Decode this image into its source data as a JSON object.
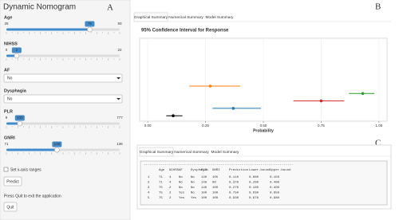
{
  "app": {
    "title": "Dynamic Nomogram",
    "panel_labels": [
      "A",
      "B",
      "C"
    ]
  },
  "inputs": [
    {
      "kind": "slider",
      "label": "Age",
      "min": 25,
      "max": 93,
      "value": 75
    },
    {
      "kind": "slider",
      "label": "NIHSS",
      "min": 0,
      "max": 22,
      "value": 2
    },
    {
      "kind": "select",
      "label": "AF",
      "value": "No"
    },
    {
      "kind": "select",
      "label": "Dysphagia",
      "value": "No"
    },
    {
      "kind": "slider",
      "label": "PLR",
      "min": 9,
      "max": 777,
      "value": 100
    },
    {
      "kind": "slider",
      "label": "GNRI",
      "min": 71,
      "max": 136,
      "value": 100
    }
  ],
  "checkbox": "Set x-axis ranges",
  "predict": "Predict",
  "quit_note": "Press Quit to exit the application",
  "quit": "Quit",
  "tabs": [
    "Graphical Summary",
    "Numerical Summary",
    "Model Summary"
  ],
  "chart_data": {
    "type": "errorbar",
    "title": "95% Confidence Interval for Response",
    "xlabel": "Probability",
    "xlim": [
      -0.035,
      1.035
    ],
    "xticks": [
      {
        "value": 0,
        "label": "0.00"
      },
      {
        "value": 0.25,
        "label": "0.25"
      },
      {
        "value": 0.5,
        "label": "0.50"
      },
      {
        "value": 0.75,
        "label": "0.75"
      },
      {
        "value": 1,
        "label": "1.00"
      }
    ],
    "grid": true,
    "points": [
      {
        "value": 0.27,
        "lower": 0.18,
        "upper": 0.4,
        "color": "#ff7f0e"
      },
      {
        "value": 0.93,
        "lower": 0.87,
        "upper": 0.98,
        "color": "#2ca02c"
      },
      {
        "value": 0.75,
        "lower": 0.63,
        "upper": 0.85,
        "color": "#d62728"
      },
      {
        "value": 0.37,
        "lower": 0.28,
        "upper": 0.49,
        "color": "#1f77b4"
      },
      {
        "value": 0.11,
        "lower": 0.08,
        "upper": 0.15,
        "color": "#000000"
      }
    ]
  },
  "table": {
    "columns": [
      "Age",
      "NIHSS",
      "AF",
      "Dysphagia",
      "PLR",
      "GNRI",
      "Prediction",
      "Lower.bound",
      "Upper.bound"
    ],
    "rows": [
      [
        "1",
        "71",
        "4",
        "No",
        "No",
        "140",
        "105",
        "0.110",
        "0.080",
        "0.150"
      ],
      [
        "2",
        "71",
        "4",
        "No",
        "No",
        "140",
        "90",
        "0.370",
        "0.280",
        "0.490"
      ],
      [
        "3",
        "75",
        "2",
        "No",
        "No",
        "140",
        "100",
        "0.270",
        "0.180",
        "0.400"
      ],
      [
        "4",
        "75",
        "2",
        "Yes",
        "No",
        "100",
        "100",
        "0.750",
        "0.630",
        "0.850"
      ],
      [
        "5",
        "75",
        "2",
        "Yes",
        "Yes",
        "100",
        "100",
        "0.930",
        "0.870",
        "0.980"
      ]
    ]
  }
}
